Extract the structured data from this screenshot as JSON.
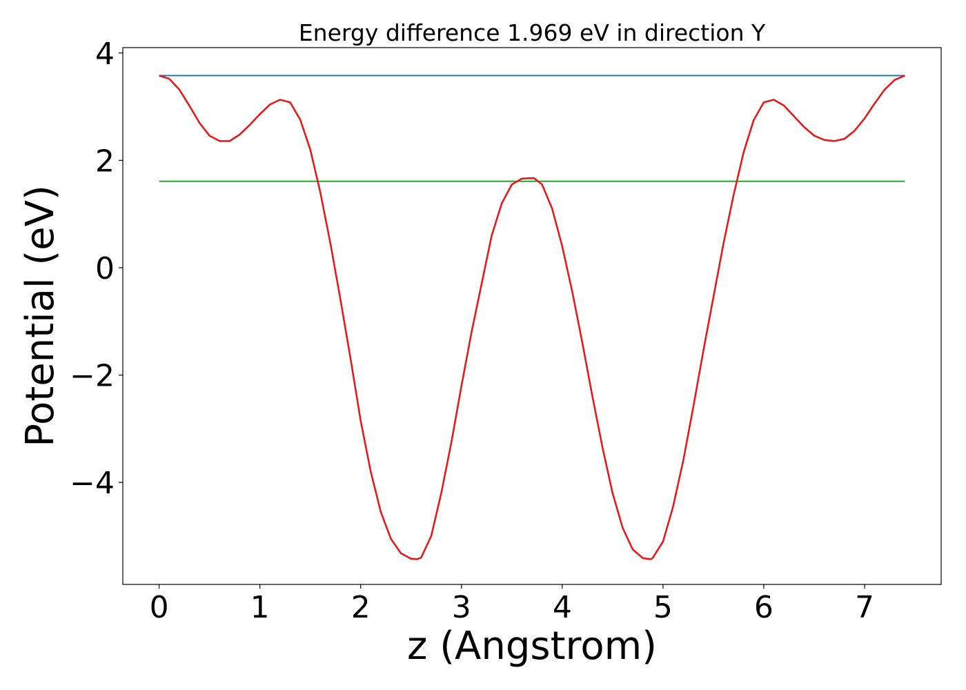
{
  "chart_data": {
    "type": "line",
    "title": "Energy difference 1.969 eV in direction Y",
    "xlabel": "z (Angstrom)",
    "ylabel": "Potential (eV)",
    "xlim": [
      -0.36,
      7.76
    ],
    "ylim": [
      -5.9,
      4.1
    ],
    "xticks": [
      0,
      1,
      2,
      3,
      4,
      5,
      6,
      7
    ],
    "xtick_labels": [
      "0",
      "1",
      "2",
      "3",
      "4",
      "5",
      "6",
      "7"
    ],
    "yticks": [
      -4,
      -2,
      0,
      2,
      4
    ],
    "ytick_labels": [
      "−4",
      "−2",
      "0",
      "2",
      "4"
    ],
    "grid": false,
    "series": [
      {
        "color": "#1f77b4",
        "x": [
          0,
          7.4
        ],
        "y": [
          3.58,
          3.58
        ]
      },
      {
        "color": "#2ca02c",
        "x": [
          0,
          7.4
        ],
        "y": [
          1.61,
          1.61
        ]
      },
      {
        "color": "#e41a1c",
        "x": [
          0,
          0.1,
          0.2,
          0.3,
          0.4,
          0.5,
          0.6,
          0.7,
          0.8,
          0.9,
          1.0,
          1.1,
          1.2,
          1.3,
          1.4,
          1.5,
          1.6,
          1.7,
          1.8,
          1.9,
          2.0,
          2.1,
          2.2,
          2.3,
          2.4,
          2.5,
          2.56,
          2.6,
          2.7,
          2.8,
          2.9,
          3.0,
          3.1,
          3.2,
          3.3,
          3.4,
          3.5,
          3.6,
          3.72,
          3.8,
          3.9,
          4.0,
          4.1,
          4.2,
          4.3,
          4.4,
          4.5,
          4.6,
          4.7,
          4.8,
          4.88,
          4.9,
          5.0,
          5.1,
          5.2,
          5.3,
          5.4,
          5.5,
          5.6,
          5.7,
          5.8,
          5.9,
          6.0,
          6.1,
          6.2,
          6.3,
          6.4,
          6.5,
          6.6,
          6.7,
          6.8,
          6.9,
          7.0,
          7.1,
          7.2,
          7.3,
          7.4
        ],
        "y": [
          3.58,
          3.52,
          3.32,
          3.02,
          2.7,
          2.46,
          2.36,
          2.36,
          2.48,
          2.66,
          2.86,
          3.04,
          3.13,
          3.08,
          2.76,
          2.2,
          1.4,
          0.45,
          -0.6,
          -1.7,
          -2.85,
          -3.8,
          -4.55,
          -5.05,
          -5.32,
          -5.42,
          -5.43,
          -5.4,
          -5.0,
          -4.2,
          -3.25,
          -2.2,
          -1.2,
          -0.3,
          0.6,
          1.2,
          1.55,
          1.66,
          1.67,
          1.55,
          1.1,
          0.4,
          -0.45,
          -1.4,
          -2.4,
          -3.35,
          -4.2,
          -4.85,
          -5.25,
          -5.41,
          -5.43,
          -5.4,
          -5.1,
          -4.45,
          -3.6,
          -2.6,
          -1.55,
          -0.55,
          0.45,
          1.35,
          2.15,
          2.75,
          3.08,
          3.13,
          3.02,
          2.82,
          2.62,
          2.46,
          2.38,
          2.36,
          2.4,
          2.55,
          2.78,
          3.06,
          3.32,
          3.5,
          3.58
        ]
      }
    ]
  }
}
